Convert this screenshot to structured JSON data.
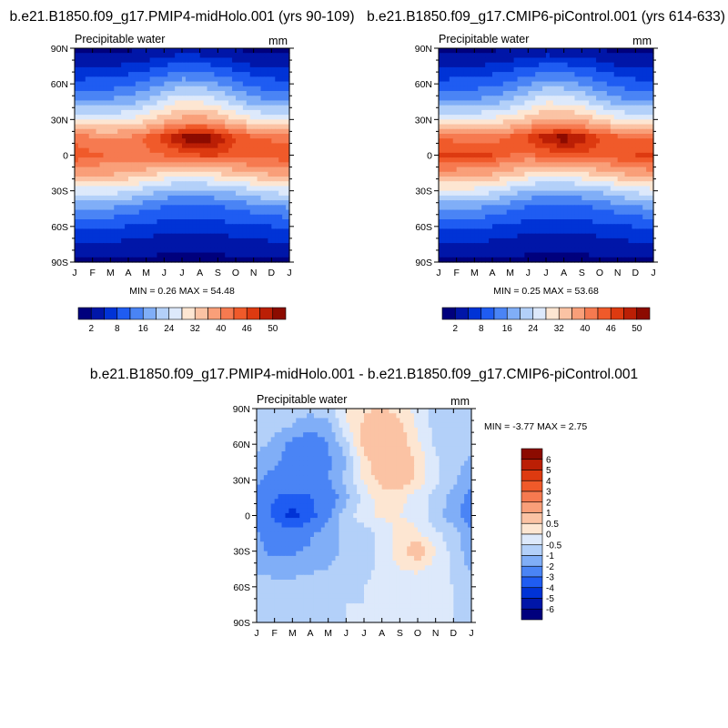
{
  "figure": {
    "panel_a_title": "b.e21.B1850.f09_g17.PMIP4-midHolo.001 (yrs 90-109)",
    "panel_b_title": "b.e21.B1850.f09_g17.CMIP6-piControl.001 (yrs 614-633)",
    "diff_title": "b.e21.B1850.f09_g17.PMIP4-midHolo.001 - b.e21.B1850.f09_g17.CMIP6-piControl.001"
  },
  "chart_data": [
    {
      "type": "heatmap",
      "title": "b.e21.B1850.f09_g17.PMIP4-midHolo.001 (yrs 90-109)",
      "variable": "Precipitable water",
      "units": "mm",
      "x_ticks": [
        "J",
        "F",
        "M",
        "A",
        "M",
        "J",
        "J",
        "A",
        "S",
        "O",
        "N",
        "D",
        "J"
      ],
      "y_ticks": [
        "90N",
        "60N",
        "30N",
        "0",
        "30S",
        "60S",
        "90S"
      ],
      "y_range": [
        -90,
        90
      ],
      "stats_text": "MIN =   0.26 MAX =  54.48",
      "min": 0.26,
      "max": 54.48,
      "colorbar_labels": [
        "2",
        "8",
        "16",
        "24",
        "32",
        "40",
        "46",
        "50"
      ],
      "colorbar_colors": [
        "#00007d",
        "#0016a8",
        "#0033d6",
        "#1f5cf2",
        "#4a84f5",
        "#80aef7",
        "#b3d0f9",
        "#dde9fb",
        "#fde6d2",
        "#fbc3a4",
        "#f99f79",
        "#f67a50",
        "#f05a2a",
        "#dd3a10",
        "#bb1f05",
        "#8c0b00"
      ],
      "grid": [
        [
          1.0,
          1.2,
          1.3,
          1.4,
          1.6,
          2.0,
          2.6,
          2.4,
          2.0,
          1.6,
          1.2,
          1.0,
          1.0
        ],
        [
          4.0,
          4.5,
          5.0,
          5.5,
          6.5,
          8.0,
          9.5,
          9.0,
          8.0,
          6.5,
          5.0,
          4.2,
          4.0
        ],
        [
          9.0,
          9.5,
          10.0,
          11.0,
          13.0,
          16.0,
          18.5,
          18.0,
          16.0,
          13.0,
          10.5,
          9.5,
          9.0
        ],
        [
          16.0,
          16.5,
          17.0,
          18.5,
          21.0,
          25.0,
          28.5,
          28.0,
          25.5,
          21.5,
          18.0,
          16.5,
          16.0
        ],
        [
          28.0,
          27.5,
          27.5,
          28.5,
          31.0,
          34.5,
          37.5,
          38.0,
          36.0,
          32.0,
          29.0,
          28.0,
          28.0
        ],
        [
          42.0,
          40.5,
          39.5,
          40.5,
          43.5,
          47.5,
          51.0,
          52.5,
          50.0,
          46.0,
          43.5,
          42.5,
          42.0
        ],
        [
          45.0,
          43.5,
          42.5,
          42.0,
          42.5,
          43.0,
          44.5,
          46.0,
          46.0,
          45.0,
          45.5,
          45.0,
          45.0
        ],
        [
          38.0,
          37.5,
          37.0,
          36.0,
          34.5,
          32.0,
          30.5,
          31.0,
          32.5,
          34.0,
          36.0,
          37.0,
          38.0
        ],
        [
          26.0,
          26.5,
          26.0,
          24.5,
          22.0,
          19.5,
          18.5,
          18.5,
          19.5,
          21.0,
          23.5,
          25.0,
          26.0
        ],
        [
          15.5,
          16.0,
          15.5,
          14.5,
          12.5,
          11.0,
          10.5,
          10.5,
          11.0,
          12.0,
          13.5,
          14.5,
          15.5
        ],
        [
          8.5,
          8.8,
          8.5,
          7.8,
          7.0,
          6.5,
          6.2,
          6.2,
          6.5,
          7.0,
          7.5,
          8.0,
          8.5
        ],
        [
          4.5,
          4.6,
          4.5,
          4.0,
          3.5,
          3.2,
          3.0,
          3.0,
          3.2,
          3.5,
          4.0,
          4.3,
          4.5
        ],
        [
          1.5,
          1.5,
          1.5,
          1.3,
          1.2,
          1.1,
          1.0,
          1.0,
          1.1,
          1.2,
          1.3,
          1.4,
          1.5
        ]
      ]
    },
    {
      "type": "heatmap",
      "title": "b.e21.B1850.f09_g17.CMIP6-piControl.001 (yrs 614-633)",
      "variable": "Precipitable water",
      "units": "mm",
      "x_ticks": [
        "J",
        "F",
        "M",
        "A",
        "M",
        "J",
        "J",
        "A",
        "S",
        "O",
        "N",
        "D",
        "J"
      ],
      "y_ticks": [
        "90N",
        "60N",
        "30N",
        "0",
        "30S",
        "60S",
        "90S"
      ],
      "y_range": [
        -90,
        90
      ],
      "stats_text": "MIN =   0.25 MAX =  53.68",
      "min": 0.25,
      "max": 53.68,
      "colorbar_labels": [
        "2",
        "8",
        "16",
        "24",
        "32",
        "40",
        "46",
        "50"
      ],
      "colorbar_colors": [
        "#00007d",
        "#0016a8",
        "#0033d6",
        "#1f5cf2",
        "#4a84f5",
        "#80aef7",
        "#b3d0f9",
        "#dde9fb",
        "#fde6d2",
        "#fbc3a4",
        "#f99f79",
        "#f67a50",
        "#f05a2a",
        "#dd3a10",
        "#bb1f05",
        "#8c0b00"
      ],
      "grid": [
        [
          1.0,
          1.2,
          1.3,
          1.4,
          1.6,
          2.0,
          2.4,
          2.3,
          1.9,
          1.5,
          1.2,
          1.0,
          1.0
        ],
        [
          4.0,
          4.5,
          5.0,
          5.5,
          6.5,
          7.8,
          9.0,
          8.6,
          7.6,
          6.3,
          4.9,
          4.2,
          4.0
        ],
        [
          9.0,
          9.5,
          10.0,
          11.0,
          12.8,
          15.5,
          17.8,
          17.4,
          15.6,
          12.8,
          10.4,
          9.4,
          9.0
        ],
        [
          16.0,
          16.5,
          17.0,
          18.3,
          20.6,
          24.3,
          27.5,
          27.2,
          25.0,
          21.2,
          17.9,
          16.4,
          16.0
        ],
        [
          28.5,
          28.0,
          28.0,
          28.8,
          31.0,
          34.0,
          36.5,
          37.0,
          35.2,
          31.6,
          28.8,
          28.2,
          28.5
        ],
        [
          43.0,
          42.0,
          41.0,
          41.5,
          44.0,
          47.0,
          50.0,
          51.5,
          49.5,
          46.0,
          44.0,
          43.5,
          43.0
        ],
        [
          46.5,
          46.0,
          47.5,
          46.0,
          43.0,
          42.5,
          44.0,
          45.5,
          45.5,
          45.0,
          45.5,
          46.0,
          46.5
        ],
        [
          39.0,
          38.5,
          38.0,
          37.0,
          35.0,
          32.0,
          30.5,
          30.8,
          32.3,
          34.0,
          36.2,
          37.8,
          39.0
        ],
        [
          26.5,
          27.0,
          26.5,
          25.0,
          22.3,
          19.6,
          18.5,
          18.5,
          19.3,
          20.8,
          23.4,
          25.2,
          26.5
        ],
        [
          16.0,
          16.3,
          15.8,
          14.7,
          12.7,
          11.1,
          10.5,
          10.5,
          10.9,
          11.9,
          13.4,
          14.7,
          16.0
        ],
        [
          8.8,
          9.0,
          8.7,
          8.0,
          7.1,
          6.5,
          6.2,
          6.2,
          6.4,
          6.9,
          7.5,
          8.2,
          8.8
        ],
        [
          4.6,
          4.7,
          4.6,
          4.1,
          3.6,
          3.2,
          3.0,
          3.0,
          3.2,
          3.5,
          4.0,
          4.4,
          4.6
        ],
        [
          1.5,
          1.5,
          1.5,
          1.3,
          1.2,
          1.1,
          1.0,
          1.0,
          1.1,
          1.2,
          1.3,
          1.4,
          1.5
        ]
      ]
    },
    {
      "type": "heatmap",
      "title": "b.e21.B1850.f09_g17.PMIP4-midHolo.001 - b.e21.B1850.f09_g17.CMIP6-piControl.001",
      "variable": "Precipitable water",
      "units": "mm",
      "x_ticks": [
        "J",
        "F",
        "M",
        "A",
        "M",
        "J",
        "J",
        "A",
        "S",
        "O",
        "N",
        "D",
        "J"
      ],
      "y_ticks": [
        "90N",
        "60N",
        "30N",
        "0",
        "30S",
        "60S",
        "90S"
      ],
      "y_range": [
        -90,
        90
      ],
      "stats_text": "MIN =  -3.77 MAX =    2.75",
      "min": -3.77,
      "max": 2.75,
      "colorbar_labels": [
        "6",
        "5",
        "4",
        "3",
        "2",
        "1",
        "0.5",
        "0",
        "-0.5",
        "-1",
        "-2",
        "-3",
        "-4",
        "-5",
        "-6"
      ],
      "colorbar_colors": [
        "#8c0b00",
        "#bb1f05",
        "#dd3a10",
        "#f05a2a",
        "#f67a50",
        "#f99f79",
        "#fbc3a4",
        "#fde6d2",
        "#dde9fb",
        "#b3d0f9",
        "#80aef7",
        "#4a84f5",
        "#1f5cf2",
        "#0033d6",
        "#0016a8",
        "#00007d"
      ],
      "grid": [
        [
          -0.2,
          -0.3,
          -0.3,
          -0.3,
          -0.2,
          0.6,
          0.9,
          1.0,
          0.7,
          0.3,
          -0.2,
          -0.2,
          -0.2
        ],
        [
          -0.3,
          -0.4,
          -0.5,
          -0.9,
          -0.7,
          0.4,
          1.1,
          1.9,
          1.2,
          0.4,
          -0.2,
          -0.2,
          -0.3
        ],
        [
          -0.4,
          -0.6,
          -1.2,
          -1.3,
          -1.0,
          -0.2,
          1.2,
          1.6,
          1.3,
          0.6,
          -0.1,
          -0.3,
          -0.4
        ],
        [
          -0.6,
          -0.9,
          -1.3,
          -1.4,
          -1.1,
          -0.5,
          0.8,
          1.5,
          1.7,
          0.9,
          0.1,
          -0.3,
          -0.6
        ],
        [
          -0.9,
          -1.3,
          -1.4,
          -1.3,
          -1.0,
          -0.4,
          0.6,
          1.2,
          1.4,
          0.8,
          0.1,
          -0.4,
          -0.9
        ],
        [
          -1.2,
          -2.0,
          -2.3,
          -2.1,
          -1.5,
          -0.6,
          0.2,
          0.8,
          0.7,
          0.2,
          -0.2,
          -0.7,
          -1.2
        ],
        [
          -1.4,
          -2.2,
          -3.4,
          -2.4,
          -1.1,
          -0.2,
          0.3,
          0.6,
          0.5,
          0.3,
          -0.3,
          -0.8,
          -1.4
        ],
        [
          -0.9,
          -1.4,
          -1.6,
          -1.1,
          -0.7,
          -0.3,
          -0.3,
          0.2,
          0.7,
          0.6,
          0.1,
          -0.3,
          -0.9
        ],
        [
          -0.8,
          -1.2,
          -1.1,
          -0.9,
          -0.7,
          -0.4,
          -0.2,
          0.1,
          0.9,
          1.4,
          0.5,
          -0.2,
          -0.8
        ],
        [
          -0.6,
          -0.7,
          -0.7,
          -0.6,
          -0.5,
          -0.2,
          -0.1,
          0.1,
          0.5,
          0.6,
          0.3,
          -0.1,
          -0.6
        ],
        [
          -0.3,
          -0.3,
          -0.3,
          -0.2,
          -0.2,
          -0.1,
          0.0,
          0.1,
          0.2,
          0.2,
          0.1,
          0.0,
          -0.3
        ],
        [
          -0.2,
          -0.2,
          -0.2,
          -0.2,
          -0.1,
          0.0,
          0.0,
          0.1,
          0.1,
          0.1,
          0.1,
          0.0,
          -0.2
        ],
        [
          -0.1,
          -0.1,
          -0.1,
          -0.1,
          0.0,
          0.0,
          0.0,
          0.0,
          0.0,
          0.0,
          0.0,
          0.0,
          -0.1
        ]
      ]
    }
  ]
}
